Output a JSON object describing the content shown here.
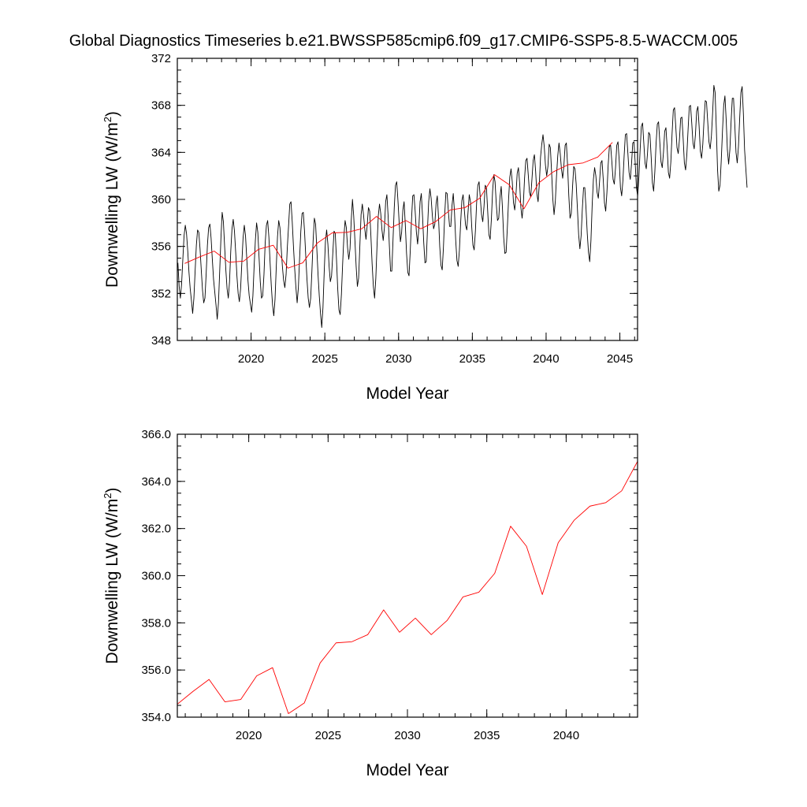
{
  "title": "Global Diagnostics Timeseries b.e21.BWSSP585cmip6.f09_g17.CMIP6-SSP5-8.5-WACCM.005",
  "chart_data": [
    {
      "type": "line",
      "xlabel": "Model Year",
      "ylabel": "Downwelling LW (W/m",
      "ylabel_sup": "2",
      "ylabel_close": ")",
      "xlim": [
        2015,
        2046.2
      ],
      "ylim": [
        348,
        372
      ],
      "xticks": [
        2020,
        2025,
        2030,
        2035,
        2040,
        2045
      ],
      "xtick_labels": [
        "2020",
        "2025",
        "2030",
        "2035",
        "2040",
        "2045"
      ],
      "yticks": [
        348,
        352,
        356,
        360,
        364,
        368,
        372
      ],
      "ytick_labels": [
        "348",
        "352",
        "356",
        "360",
        "364",
        "368",
        "372"
      ],
      "grid": false,
      "series": [
        {
          "color": "#000000",
          "description": "monthly values (seasonal cycle), estimated",
          "x_start": 2015.04,
          "x_step": 0.0833333,
          "values": [
            354.6,
            352.6,
            351.6,
            352.8,
            354.9,
            356.9,
            357.8,
            357.1,
            355.6,
            353.8,
            352.4,
            351.4,
            350.3,
            351.6,
            353.9,
            356.1,
            357.4,
            357.2,
            355.8,
            354.0,
            352.3,
            351.2,
            351.6,
            353.7,
            356.1,
            357.6,
            357.9,
            356.7,
            354.9,
            353.2,
            352.1,
            351.0,
            349.8,
            351.2,
            353.9,
            356.7,
            358.9,
            358.1,
            356.0,
            354.0,
            352.4,
            351.6,
            353.0,
            355.6,
            357.5,
            358.3,
            357.3,
            355.5,
            353.5,
            352.0,
            351.3,
            352.4,
            354.6,
            356.7,
            357.8,
            356.9,
            355.0,
            353.1,
            351.8,
            351.1,
            350.4,
            351.8,
            354.3,
            356.5,
            358.0,
            357.2,
            355.1,
            353.0,
            351.6,
            351.8,
            353.6,
            356.3,
            357.8,
            358.2,
            356.8,
            354.6,
            352.6,
            351.0,
            350.1,
            351.5,
            354.2,
            356.8,
            358.2,
            357.6,
            355.9,
            354.3,
            353.1,
            352.5,
            353.6,
            355.9,
            357.7,
            359.6,
            359.8,
            358.1,
            356.0,
            354.1,
            352.5,
            351.2,
            352.5,
            355.0,
            357.3,
            358.8,
            358.9,
            357.3,
            355.2,
            353.2,
            351.6,
            350.8,
            351.6,
            353.9,
            356.5,
            358.4,
            357.9,
            355.8,
            353.6,
            351.8,
            350.3,
            349.1,
            350.8,
            353.8,
            356.4,
            357.4,
            356.2,
            354.3,
            353.0,
            353.5,
            355.4,
            357.3,
            357.1,
            354.9,
            352.4,
            350.6,
            350.2,
            351.9,
            354.5,
            356.8,
            358.2,
            357.6,
            355.9,
            354.9,
            355.8,
            358.2,
            360.0,
            358.6,
            356.5,
            354.3,
            352.6,
            353.3,
            356.0,
            358.7,
            359.6,
            358.7,
            357.5,
            356.6,
            357.8,
            359.3,
            359.0,
            356.9,
            354.5,
            352.6,
            351.6,
            353.3,
            356.1,
            358.6,
            359.6,
            358.8,
            357.4,
            356.5,
            357.6,
            359.8,
            360.4,
            358.6,
            356.1,
            353.9,
            353.9,
            356.6,
            359.3,
            361.2,
            361.5,
            359.9,
            358.0,
            356.4,
            357.2,
            359.1,
            359.8,
            357.8,
            355.4,
            353.8,
            353.5,
            355.6,
            358.2,
            360.3,
            360.4,
            359.0,
            357.2,
            356.2,
            357.6,
            359.8,
            360.5,
            358.6,
            356.3,
            354.6,
            354.7,
            357.4,
            359.8,
            360.9,
            360.1,
            358.6,
            357.5,
            357.9,
            359.6,
            360.3,
            358.5,
            356.0,
            354.4,
            354.0,
            355.9,
            358.6,
            360.6,
            360.5,
            359.0,
            357.7,
            357.7,
            359.5,
            360.5,
            358.9,
            356.5,
            354.8,
            354.3,
            355.7,
            358.0,
            359.9,
            360.4,
            359.1,
            357.8,
            357.4,
            358.9,
            360.4,
            359.8,
            357.7,
            356.1,
            355.7,
            357.3,
            359.7,
            361.2,
            361.5,
            360.1,
            358.7,
            358.1,
            359.4,
            361.2,
            361.0,
            359.0,
            357.0,
            356.6,
            358.3,
            360.7,
            362.1,
            361.5,
            359.6,
            358.2,
            358.4,
            360.2,
            361.1,
            359.3,
            356.8,
            355.4,
            355.5,
            357.6,
            360.0,
            361.9,
            362.6,
            361.5,
            359.7,
            359.1,
            360.4,
            362.2,
            362.7,
            361.4,
            359.3,
            358.4,
            359.6,
            361.8,
            363.3,
            363.5,
            362.1,
            360.6,
            360.2,
            361.7,
            363.3,
            363.8,
            362.4,
            360.5,
            359.8,
            361.3,
            363.6,
            364.7,
            365.5,
            364.5,
            362.9,
            362.0,
            362.8,
            364.7,
            364.4,
            362.3,
            360.0,
            358.7,
            359.8,
            362.0,
            363.7,
            364.8,
            363.9,
            362.6,
            361.8,
            362.9,
            364.6,
            364.8,
            362.9,
            360.3,
            358.4,
            358.8,
            361.0,
            362.8,
            362.6,
            361.3,
            359.2,
            357.0,
            355.8,
            356.9,
            359.2,
            361.0,
            361.0,
            359.2,
            357.1,
            355.5,
            354.7,
            356.5,
            359.5,
            361.7,
            362.7,
            362.0,
            360.6,
            360.1,
            361.5,
            363.1,
            363.3,
            361.7,
            359.7,
            359.0,
            360.6,
            362.9,
            364.5,
            364.6,
            363.2,
            361.7,
            361.3,
            362.7,
            364.6,
            364.9,
            363.3,
            361.0,
            360.3,
            361.6,
            363.7,
            365.5,
            365.6,
            364.0,
            362.3,
            361.7,
            363.0,
            364.8,
            364.9,
            363.1,
            361.0,
            360.3,
            361.9,
            364.2,
            366.2,
            366.5,
            364.8,
            363.1,
            362.6,
            363.9,
            365.7,
            365.5,
            363.6,
            361.4,
            360.7,
            362.4,
            364.8,
            366.4,
            366.6,
            364.9,
            363.2,
            362.7,
            364.0,
            365.8,
            366.1,
            364.4,
            362.3,
            361.8,
            363.2,
            365.6,
            367.6,
            367.8,
            366.2,
            364.4,
            363.9,
            365.1,
            366.9,
            367.0,
            365.2,
            363.1,
            362.5,
            363.8,
            365.9,
            367.9,
            368.0,
            366.5,
            364.8,
            364.3,
            365.5,
            367.5,
            367.9,
            366.2,
            364.1,
            363.5,
            364.7,
            366.8,
            368.4,
            368.3,
            366.6,
            364.9,
            364.3,
            365.4,
            367.4,
            369.7,
            369.1,
            366.0,
            362.5,
            360.7,
            361.2,
            363.3,
            365.8,
            368.0,
            368.8,
            366.8,
            364.2,
            363.0,
            364.2,
            366.6,
            368.6,
            368.6,
            366.4,
            364.0,
            363.1,
            364.5,
            366.9,
            369.1,
            369.6,
            367.3,
            364.2,
            362.6,
            361.0
          ]
        },
        {
          "color": "#ff0000",
          "description": "annual means, estimated",
          "x": [
            2015.5,
            2016.5,
            2017.5,
            2018.5,
            2019.5,
            2020.5,
            2021.5,
            2022.5,
            2023.5,
            2024.5,
            2025.5,
            2026.5,
            2027.5,
            2028.5,
            2029.5,
            2030.5,
            2031.5,
            2032.5,
            2033.5,
            2034.5,
            2035.5,
            2036.5,
            2037.5,
            2038.5,
            2039.5,
            2040.5,
            2041.5,
            2042.5,
            2043.5,
            2044.5
          ],
          "values": [
            354.55,
            355.1,
            355.6,
            354.65,
            354.75,
            355.75,
            356.1,
            354.15,
            354.6,
            356.3,
            357.15,
            357.2,
            357.5,
            358.55,
            357.6,
            358.2,
            357.5,
            358.1,
            359.1,
            359.3,
            360.1,
            362.1,
            361.25,
            359.2,
            361.4,
            362.35,
            362.95,
            363.1,
            363.6,
            364.85
          ]
        }
      ]
    },
    {
      "type": "line",
      "xlabel": "Model Year",
      "ylabel": "Downwelling LW (W/m",
      "ylabel_sup": "2",
      "ylabel_close": ")",
      "xlim": [
        2015.5,
        2044.5
      ],
      "ylim": [
        354,
        366
      ],
      "xticks": [
        2020,
        2025,
        2030,
        2035,
        2040
      ],
      "xtick_labels": [
        "2020",
        "2025",
        "2030",
        "2035",
        "2040"
      ],
      "yticks": [
        354,
        356,
        358,
        360,
        362,
        364,
        366
      ],
      "ytick_labels": [
        "354.0",
        "356.0",
        "358.0",
        "360.0",
        "362.0",
        "364.0",
        "366.0"
      ],
      "grid": false,
      "series": [
        {
          "color": "#ff0000",
          "description": "annual means, estimated",
          "x": [
            2015.5,
            2016.5,
            2017.5,
            2018.5,
            2019.5,
            2020.5,
            2021.5,
            2022.5,
            2023.5,
            2024.5,
            2025.5,
            2026.5,
            2027.5,
            2028.5,
            2029.5,
            2030.5,
            2031.5,
            2032.5,
            2033.5,
            2034.5,
            2035.5,
            2036.5,
            2037.5,
            2038.5,
            2039.5,
            2040.5,
            2041.5,
            2042.5,
            2043.5,
            2044.5
          ],
          "values": [
            354.55,
            355.1,
            355.6,
            354.65,
            354.75,
            355.75,
            356.1,
            354.15,
            354.6,
            356.3,
            357.15,
            357.2,
            357.5,
            358.55,
            357.6,
            358.2,
            357.5,
            358.1,
            359.1,
            359.3,
            360.1,
            362.1,
            361.25,
            359.2,
            361.4,
            362.35,
            362.95,
            363.1,
            363.6,
            364.85
          ]
        }
      ]
    }
  ]
}
